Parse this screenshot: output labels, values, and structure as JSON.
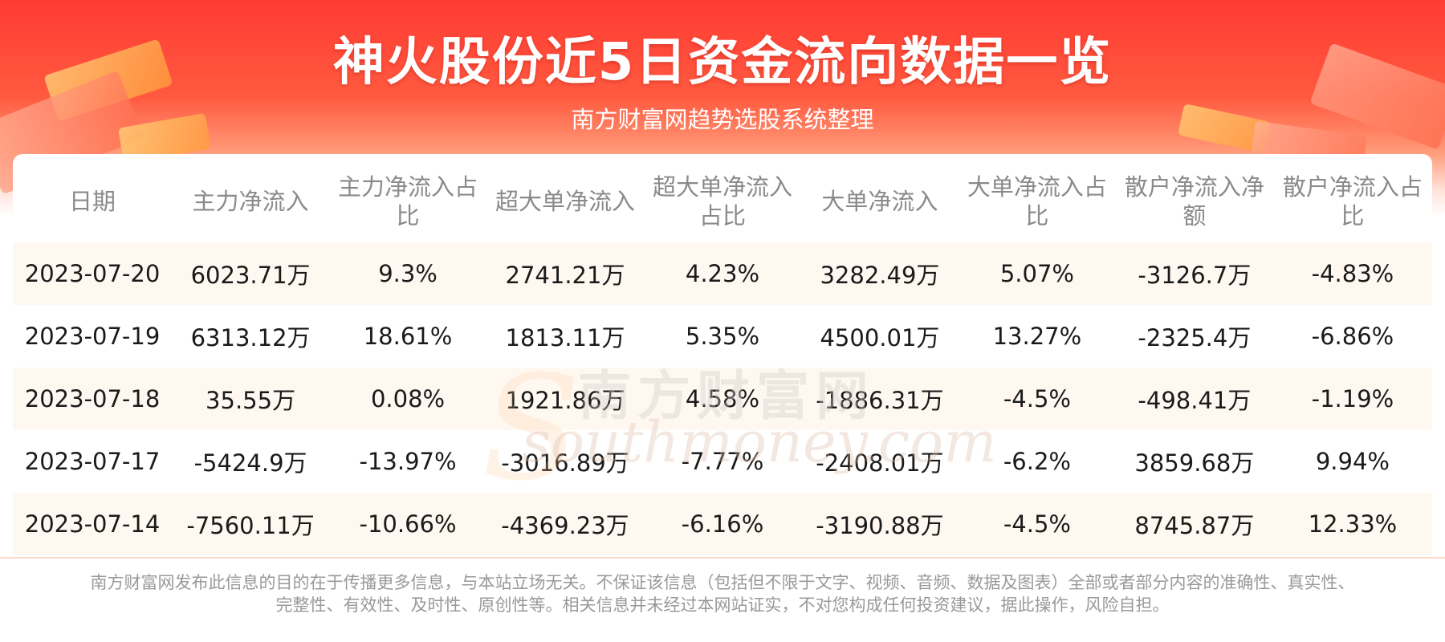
{
  "header": {
    "title": "神火股份近5日资金流向数据一览",
    "subtitle": "南方财富网趋势选股系统整理"
  },
  "watermark": {
    "cn": "南方财富网",
    "en": "southmoney.com"
  },
  "table": {
    "columns": [
      "日期",
      "主力净流入",
      "主力净流入占比",
      "超大单净流入",
      "超大单净流入占比",
      "大单净流入",
      "大单净流入占比",
      "散户净流入净额",
      "散户净流入占比"
    ],
    "rows": [
      [
        "2023-07-20",
        "6023.71万",
        "9.3%",
        "2741.21万",
        "4.23%",
        "3282.49万",
        "5.07%",
        "-3126.7万",
        "-4.83%"
      ],
      [
        "2023-07-19",
        "6313.12万",
        "18.61%",
        "1813.11万",
        "5.35%",
        "4500.01万",
        "13.27%",
        "-2325.4万",
        "-6.86%"
      ],
      [
        "2023-07-18",
        "35.55万",
        "0.08%",
        "1921.86万",
        "4.58%",
        "-1886.31万",
        "-4.5%",
        "-498.41万",
        "-1.19%"
      ],
      [
        "2023-07-17",
        "-5424.9万",
        "-13.97%",
        "-3016.89万",
        "-7.77%",
        "-2408.01万",
        "-6.2%",
        "3859.68万",
        "9.94%"
      ],
      [
        "2023-07-14",
        "-7560.11万",
        "-10.66%",
        "-4369.23万",
        "-6.16%",
        "-3190.88万",
        "-4.5%",
        "8745.87万",
        "12.33%"
      ]
    ]
  },
  "footer": {
    "disclaimer_line1": "南方财富网发布此信息的目的在于传播更多信息，与本站立场无关。不保证该信息（包括但不限于文字、视频、音频、数据及图表）全部或者部分内容的准确性、真实性、",
    "disclaimer_line2": "完整性、有效性、及时性、原创性等。相关信息并未经过本网站证实，不对您构成任何投资建议，据此操作，风险自担。"
  },
  "colors": {
    "banner_red": "#ff3b33",
    "row_tint": "#fff8f1",
    "header_text": "#8a8a8a",
    "disclaimer_text": "#999999"
  }
}
